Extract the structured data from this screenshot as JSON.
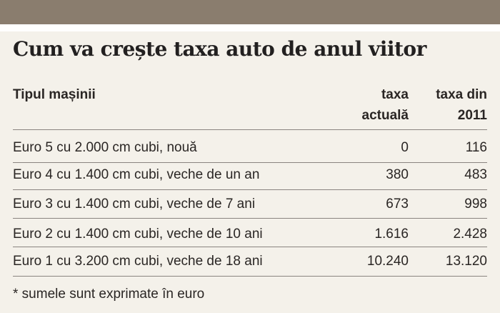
{
  "title": "Cum va crește taxa auto de anul viitor",
  "headers": {
    "type": "Tipul mașinii",
    "current_line1": "taxa",
    "current_line2": "actuală",
    "new_line1": "taxa din",
    "new_line2": "2011"
  },
  "rows": [
    {
      "type": "Euro 5 cu 2.000 cm cubi, nouă",
      "current": "0",
      "new": "116"
    },
    {
      "type": "Euro 4 cu 1.400 cm cubi, veche de un an",
      "current": "380",
      "new": "483"
    },
    {
      "type": "Euro 3 cu 1.400 cm cubi, veche de 7 ani",
      "current": "673",
      "new": "998"
    },
    {
      "type": "Euro 2 cu 1.400 cm cubi, veche de 10 ani",
      "current": "1.616",
      "new": "2.428"
    },
    {
      "type": "Euro 1 cu 3.200 cm cubi, veche de 18 ani",
      "current": "10.240",
      "new": "13.120"
    }
  ],
  "footnote": "* sumele sunt exprimate în euro",
  "colors": {
    "top_band": "#8a7d6e",
    "background": "#f4f1ea",
    "text": "#2a2624",
    "rule": "#8a8480"
  }
}
